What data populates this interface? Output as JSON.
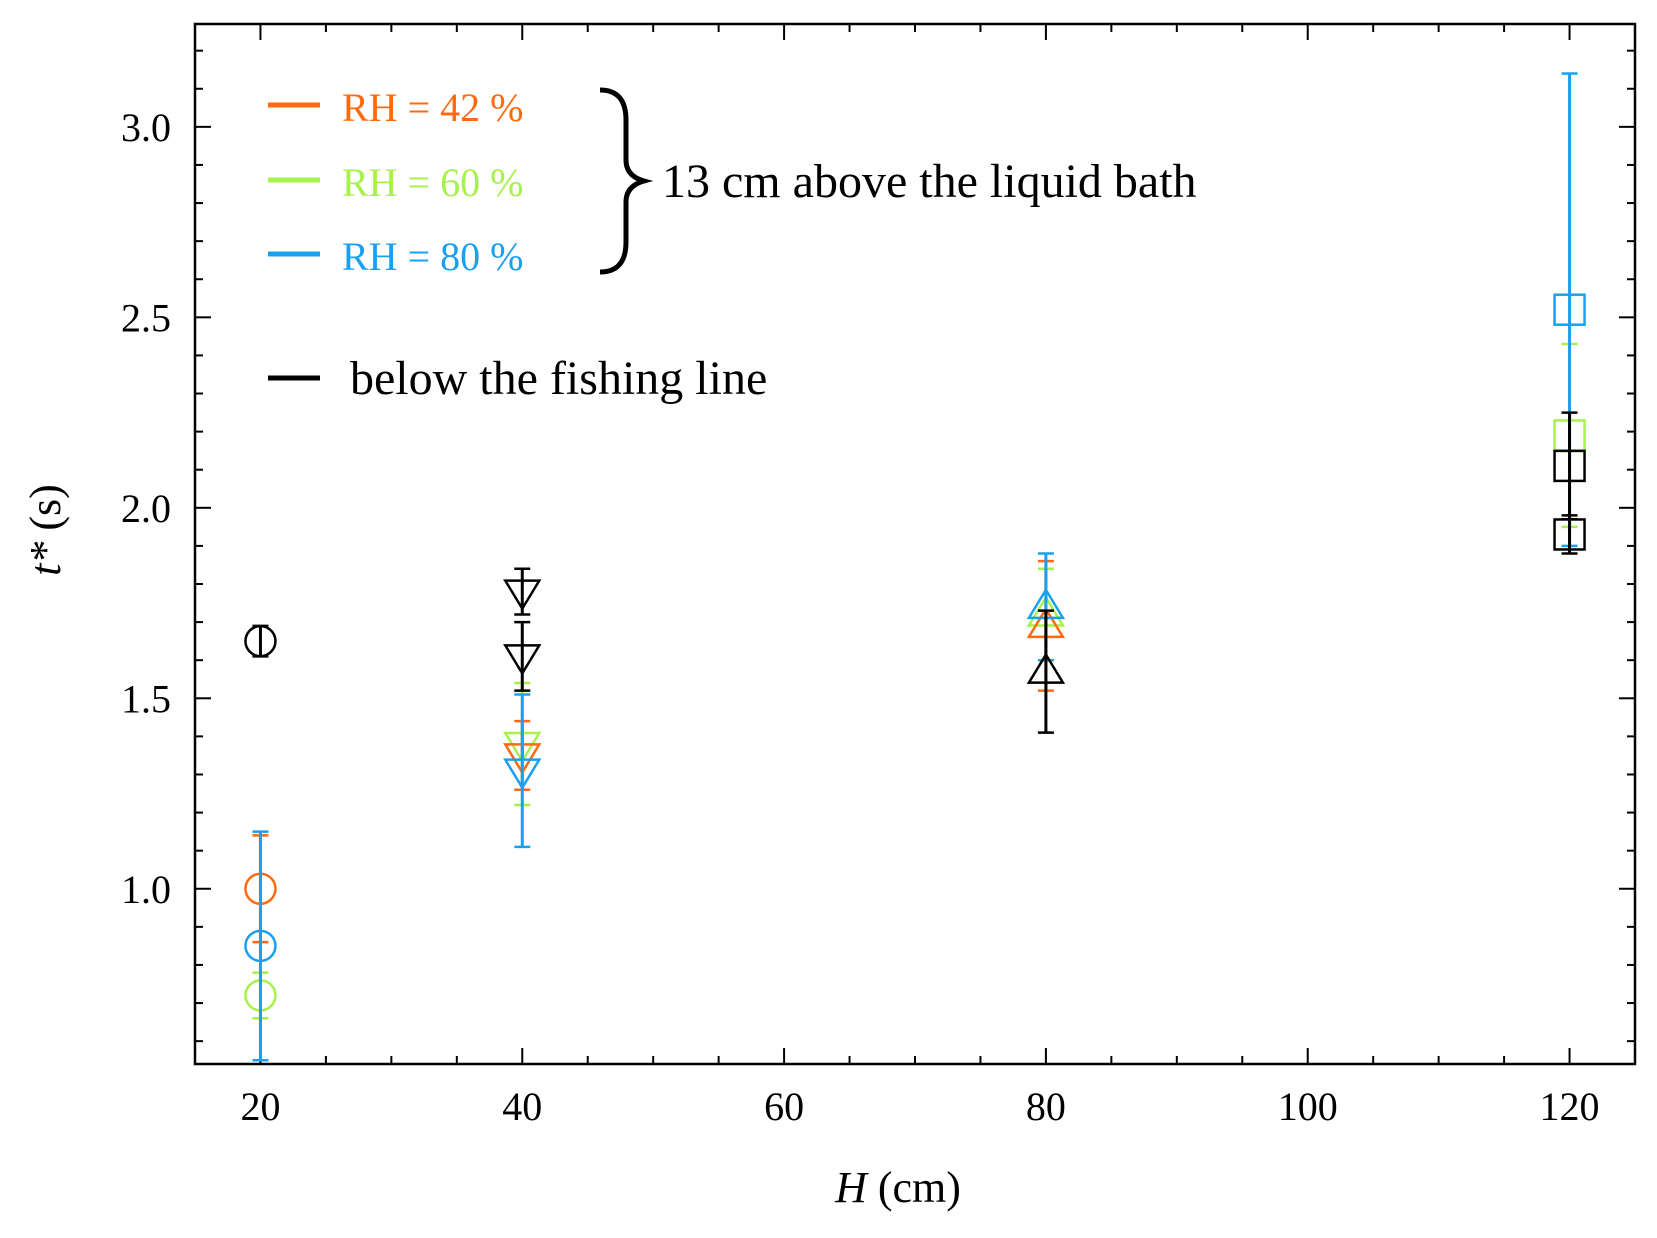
{
  "chart_data": {
    "type": "scatter",
    "title": "",
    "xlabel_var": "H",
    "xlabel_unit": "(cm)",
    "ylabel_var": "t*",
    "ylabel_unit": "(s)",
    "xlim": [
      15,
      125
    ],
    "ylim": [
      0.54,
      3.27
    ],
    "xticks": [
      20,
      40,
      60,
      80,
      100,
      120
    ],
    "yticks": [
      1.0,
      1.5,
      2.0,
      2.5,
      3.0
    ],
    "xtick_labels": [
      "20",
      "40",
      "60",
      "80",
      "100",
      "120"
    ],
    "ytick_labels": [
      "1.0",
      "1.5",
      "2.0",
      "2.5",
      "3.0"
    ],
    "grid": false,
    "legend": {
      "placement": "top-left",
      "group_label": "13 cm above the liquid bath",
      "entries": [
        {
          "label": "RH = 42 %",
          "color": "#ff6a10"
        },
        {
          "label": "RH = 60 %",
          "color": "#a6f24a"
        },
        {
          "label": "RH = 80 %",
          "color": "#1aa0f0"
        },
        {
          "label": "below the fishing line",
          "color": "#000000"
        }
      ]
    },
    "series": [
      {
        "name": "RH = 60 %",
        "color": "#a6f24a",
        "points": [
          {
            "x": 20,
            "y": 0.72,
            "err": 0.06,
            "marker": "circle"
          },
          {
            "x": 40,
            "y": 1.38,
            "err": 0.16,
            "marker": "triangle-down"
          },
          {
            "x": 80,
            "y": 1.72,
            "err": 0.12,
            "marker": "triangle-up"
          },
          {
            "x": 120,
            "y": 2.19,
            "err": 0.24,
            "marker": "square"
          }
        ]
      },
      {
        "name": "RH = 42 %",
        "color": "#ff6a10",
        "points": [
          {
            "x": 20,
            "y": 1.0,
            "err": 0.14,
            "marker": "circle"
          },
          {
            "x": 40,
            "y": 1.35,
            "err": 0.09,
            "marker": "triangle-down"
          },
          {
            "x": 80,
            "y": 1.69,
            "err": 0.17,
            "marker": "triangle-up"
          }
        ]
      },
      {
        "name": "RH = 80 %",
        "color": "#1aa0f0",
        "points": [
          {
            "x": 20,
            "y": 0.85,
            "err": 0.3,
            "marker": "circle"
          },
          {
            "x": 40,
            "y": 1.31,
            "err": 0.2,
            "marker": "triangle-down"
          },
          {
            "x": 80,
            "y": 1.74,
            "err": 0.14,
            "marker": "triangle-up"
          },
          {
            "x": 120,
            "y": 2.52,
            "err": 0.62,
            "marker": "square"
          }
        ]
      },
      {
        "name": "below the fishing line",
        "color": "#000000",
        "points": [
          {
            "x": 20,
            "y": 1.65,
            "err": 0.04,
            "marker": "circle"
          },
          {
            "x": 40,
            "y": 1.78,
            "err": 0.06,
            "marker": "triangle-down"
          },
          {
            "x": 40,
            "y": 1.61,
            "err": 0.09,
            "marker": "triangle-down"
          },
          {
            "x": 80,
            "y": 1.57,
            "err": 0.16,
            "marker": "triangle-up"
          },
          {
            "x": 120,
            "y": 2.11,
            "err": 0.14,
            "marker": "square"
          },
          {
            "x": 120,
            "y": 1.93,
            "err": 0.05,
            "marker": "square"
          }
        ]
      }
    ]
  }
}
